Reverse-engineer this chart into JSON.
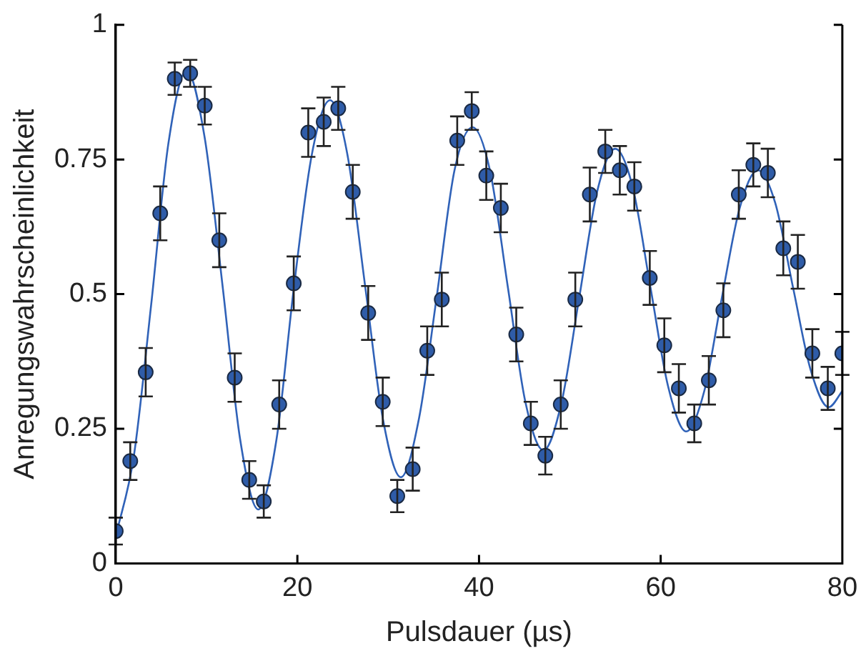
{
  "chart_data": {
    "type": "scatter",
    "xlabel": "Pulsdauer (µs)",
    "ylabel": "Anregungswahrscheinlichkeit",
    "xlim": [
      0,
      80
    ],
    "xticks": [
      0,
      20,
      40,
      60,
      80
    ],
    "ylim": [
      0,
      1
    ],
    "yticks": [
      0,
      0.25,
      0.5,
      0.75,
      1
    ],
    "grid": false,
    "legend": false,
    "marker": "circle",
    "series": [
      {
        "color": "#2f5ca8",
        "x": [
          0,
          1.6,
          3.3,
          4.9,
          6.5,
          8.2,
          9.8,
          11.4,
          13.1,
          14.7,
          16.3,
          18.0,
          19.6,
          21.2,
          22.9,
          24.5,
          26.1,
          27.8,
          29.4,
          31.0,
          32.7,
          34.3,
          35.9,
          37.6,
          39.2,
          40.8,
          42.4,
          44.1,
          45.7,
          47.3,
          49.0,
          50.6,
          52.2,
          53.9,
          55.5,
          57.1,
          58.8,
          60.4,
          62.0,
          63.7,
          65.3,
          66.9,
          68.6,
          70.2,
          71.8,
          73.5,
          75.1,
          76.7,
          78.4,
          80.0
        ],
        "values": [
          0.06,
          0.19,
          0.355,
          0.65,
          0.9,
          0.91,
          0.85,
          0.6,
          0.345,
          0.155,
          0.115,
          0.295,
          0.52,
          0.8,
          0.82,
          0.845,
          0.69,
          0.465,
          0.3,
          0.125,
          0.175,
          0.395,
          0.49,
          0.785,
          0.84,
          0.72,
          0.66,
          0.425,
          0.26,
          0.2,
          0.295,
          0.49,
          0.685,
          0.765,
          0.73,
          0.7,
          0.53,
          0.405,
          0.325,
          0.26,
          0.34,
          0.47,
          0.685,
          0.74,
          0.725,
          0.585,
          0.56,
          0.39,
          0.325,
          0.39
        ],
        "errors": [
          0.025,
          0.035,
          0.045,
          0.05,
          0.03,
          0.025,
          0.035,
          0.05,
          0.045,
          0.035,
          0.03,
          0.045,
          0.05,
          0.045,
          0.045,
          0.04,
          0.05,
          0.05,
          0.045,
          0.03,
          0.04,
          0.045,
          0.05,
          0.045,
          0.035,
          0.045,
          0.045,
          0.05,
          0.04,
          0.035,
          0.045,
          0.05,
          0.05,
          0.04,
          0.045,
          0.045,
          0.05,
          0.05,
          0.045,
          0.035,
          0.045,
          0.05,
          0.045,
          0.04,
          0.045,
          0.05,
          0.05,
          0.045,
          0.04,
          0.04
        ]
      },
      {
        "type": "line",
        "color": "#3062b8",
        "marker": "none",
        "x": [
          0,
          2,
          3.9,
          5.8,
          7.8,
          9.8,
          11.8,
          13.7,
          15.7,
          17.7,
          19.6,
          21.6,
          23.6,
          25.5,
          27.5,
          29.4,
          31.4,
          33.4,
          35.3,
          37.3,
          39.3,
          41.2,
          43.2,
          45.1,
          47.1,
          49.1,
          51.0,
          53.0,
          55.0,
          56.9,
          58.9,
          60.8,
          62.8,
          64.8,
          66.7,
          68.7,
          70.7,
          72.6,
          74.6,
          76.5,
          78.5,
          80
        ],
        "values": [
          0.05,
          0.2,
          0.48,
          0.78,
          0.915,
          0.79,
          0.51,
          0.23,
          0.1,
          0.23,
          0.51,
          0.76,
          0.86,
          0.76,
          0.51,
          0.27,
          0.16,
          0.27,
          0.49,
          0.73,
          0.81,
          0.73,
          0.51,
          0.3,
          0.21,
          0.3,
          0.49,
          0.69,
          0.77,
          0.7,
          0.51,
          0.33,
          0.245,
          0.32,
          0.49,
          0.66,
          0.73,
          0.67,
          0.51,
          0.36,
          0.29,
          0.32
        ]
      }
    ]
  }
}
